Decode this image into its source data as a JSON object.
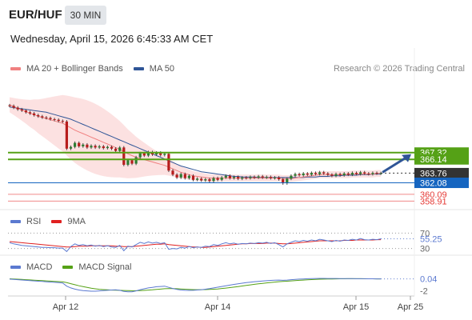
{
  "header": {
    "symbol": "EUR/HUF",
    "interval": "30 MIN",
    "datetime": "Wednesday, April 15, 2026 6:45:33 AM CET",
    "research": "Research © 2026 Trading Central"
  },
  "colors": {
    "ma20": "#f08080",
    "ma50": "#2f5597",
    "bollinger": "#fcdcdc",
    "support_resistance": "#55a116",
    "pivot_blue": "#1565c0",
    "red_lines": "#f08a8a",
    "rsi": "#5b79d0",
    "rsi_ma": "#e02020",
    "macd": "#5b79d0",
    "macd_signal": "#55a116",
    "current_tag": "#333333",
    "arrow": "#2f5597"
  },
  "chart_data": [
    {
      "type": "candlestick",
      "panel": "price",
      "legend": [
        "MA 20 + Bollinger Bands",
        "MA 50"
      ],
      "x_ticks": [
        "Apr 12",
        "Apr 14",
        "Apr 15",
        "Apr 25"
      ],
      "ylim": [
        358.0,
        378.5
      ],
      "levels": [
        {
          "value": 367.32,
          "label": "367.32",
          "style": "resistance"
        },
        {
          "value": 366.14,
          "label": "366.14",
          "style": "resistance"
        },
        {
          "value": 363.76,
          "label": "363.76",
          "style": "current"
        },
        {
          "value": 362.08,
          "label": "362.08",
          "style": "pivot"
        },
        {
          "value": 360.09,
          "label": "360.09",
          "style": "support"
        },
        {
          "value": 358.91,
          "label": "358.91",
          "style": "support"
        }
      ],
      "candles": [
        [
          375.5,
          375.4
        ],
        [
          375.4,
          375.1
        ],
        [
          375.1,
          374.8
        ],
        [
          374.8,
          374.6
        ],
        [
          374.6,
          374.3
        ],
        [
          374.3,
          374.1
        ],
        [
          374.1,
          373.8
        ],
        [
          373.8,
          373.6
        ],
        [
          373.6,
          373.4
        ],
        [
          373.4,
          373.3
        ],
        [
          373.3,
          373.1
        ],
        [
          373.1,
          373.0
        ],
        [
          373.0,
          372.8
        ],
        [
          372.8,
          372.7
        ],
        [
          372.7,
          368.0
        ],
        [
          368.0,
          368.3
        ],
        [
          368.3,
          369.0
        ],
        [
          369.0,
          368.4
        ],
        [
          368.4,
          368.7
        ],
        [
          368.7,
          368.2
        ],
        [
          368.2,
          368.5
        ],
        [
          368.5,
          368.2
        ],
        [
          368.2,
          368.4
        ],
        [
          368.4,
          368.1
        ],
        [
          368.1,
          368.3
        ],
        [
          368.3,
          368.0
        ],
        [
          368.0,
          367.6
        ],
        [
          367.6,
          368.2
        ],
        [
          368.2,
          365.2
        ],
        [
          365.2,
          366.0
        ],
        [
          366.0,
          365.4
        ],
        [
          365.4,
          366.5
        ],
        [
          366.5,
          367.2
        ],
        [
          367.2,
          366.8
        ],
        [
          366.8,
          367.4
        ],
        [
          367.4,
          367.0
        ],
        [
          367.0,
          367.3
        ],
        [
          367.3,
          366.9
        ],
        [
          366.9,
          367.1
        ],
        [
          367.1,
          364.2
        ],
        [
          364.2,
          363.5
        ],
        [
          363.5,
          363.0
        ],
        [
          363.0,
          363.6
        ],
        [
          363.6,
          362.9
        ],
        [
          362.9,
          363.3
        ],
        [
          363.3,
          362.6
        ],
        [
          362.6,
          362.8
        ],
        [
          362.8,
          362.5
        ],
        [
          362.5,
          362.7
        ],
        [
          362.7,
          362.4
        ],
        [
          362.4,
          362.9
        ],
        [
          362.9,
          362.6
        ],
        [
          362.6,
          363.0
        ],
        [
          363.0,
          363.3
        ],
        [
          363.3,
          362.9
        ],
        [
          362.9,
          363.1
        ],
        [
          363.1,
          362.8
        ],
        [
          362.8,
          363.0
        ],
        [
          363.0,
          362.9
        ],
        [
          362.9,
          363.1
        ],
        [
          363.1,
          363.0
        ],
        [
          363.0,
          363.2
        ],
        [
          363.2,
          363.0
        ],
        [
          363.0,
          363.1
        ],
        [
          363.1,
          362.9
        ],
        [
          362.9,
          363.0
        ],
        [
          363.0,
          362.7
        ],
        [
          362.7,
          362.0
        ],
        [
          362.0,
          362.8
        ],
        [
          362.8,
          363.3
        ],
        [
          363.3,
          363.6
        ],
        [
          363.6,
          363.4
        ],
        [
          363.4,
          363.7
        ],
        [
          363.7,
          363.5
        ],
        [
          363.5,
          363.8
        ],
        [
          363.8,
          363.6
        ],
        [
          363.6,
          363.9
        ],
        [
          363.9,
          363.7
        ],
        [
          363.7,
          363.5
        ],
        [
          363.5,
          363.3
        ],
        [
          363.3,
          363.6
        ],
        [
          363.6,
          363.4
        ],
        [
          363.4,
          363.7
        ],
        [
          363.7,
          363.5
        ],
        [
          363.5,
          363.8
        ],
        [
          363.8,
          363.6
        ],
        [
          363.6,
          363.9
        ],
        [
          363.9,
          363.7
        ],
        [
          363.7,
          363.6
        ],
        [
          363.6,
          363.8
        ],
        [
          363.8,
          363.7
        ],
        [
          363.7,
          363.76
        ]
      ],
      "ma20": [
        375.6,
        375.3,
        375.0,
        374.7,
        374.4,
        374.1,
        373.9,
        373.6,
        373.4,
        373.2,
        373.0,
        372.8,
        372.6,
        372.4,
        372.0,
        371.6,
        371.2,
        370.9,
        370.6,
        370.3,
        370.0,
        369.7,
        369.4,
        369.1,
        368.8,
        368.5,
        368.2,
        367.9,
        367.5,
        367.1,
        366.8,
        366.5,
        366.3,
        366.1,
        365.9,
        365.7,
        365.5,
        365.3,
        365.1,
        364.8,
        364.5,
        364.2,
        363.9,
        363.7,
        363.5,
        363.3,
        363.2,
        363.1,
        363.0,
        362.9,
        362.9,
        362.9,
        362.9,
        362.9,
        362.9,
        362.9,
        362.9,
        362.9,
        362.9,
        362.9,
        362.9,
        362.9,
        362.9,
        362.9,
        362.9,
        362.9,
        362.9,
        362.8,
        362.8,
        362.8,
        362.9,
        363.0,
        363.1,
        363.2,
        363.3,
        363.4,
        363.5,
        363.5,
        363.5,
        363.5,
        363.5,
        363.5,
        363.5,
        363.5,
        363.6,
        363.6,
        363.6,
        363.6,
        363.6,
        363.6,
        363.7,
        363.7
      ],
      "ma50": [
        375.2,
        375.1,
        375.0,
        374.9,
        374.8,
        374.7,
        374.6,
        374.5,
        374.4,
        374.3,
        374.1,
        373.9,
        373.7,
        373.5,
        373.3,
        373.1,
        372.8,
        372.5,
        372.2,
        371.9,
        371.6,
        371.3,
        371.0,
        370.7,
        370.4,
        370.1,
        369.8,
        369.5,
        369.2,
        368.9,
        368.6,
        368.3,
        368.0,
        367.7,
        367.4,
        367.1,
        366.8,
        366.5,
        366.2,
        365.9,
        365.6,
        365.3,
        365.0,
        364.8,
        364.6,
        364.4,
        364.2,
        364.0,
        363.9,
        363.8,
        363.7,
        363.6,
        363.5,
        363.4,
        363.3,
        363.2,
        363.2,
        363.1,
        363.1,
        363.1,
        363.1,
        363.0,
        363.0,
        363.0,
        363.0,
        363.0,
        363.0,
        363.0,
        363.0,
        363.0,
        363.0,
        363.0,
        363.0,
        363.1,
        363.1,
        363.1,
        363.2,
        363.2,
        363.2,
        363.3,
        363.3,
        363.3,
        363.4,
        363.4,
        363.4,
        363.4,
        363.5,
        363.5,
        363.5,
        363.6,
        363.6,
        363.6
      ]
    },
    {
      "type": "line",
      "panel": "rsi",
      "legend": [
        "RSI",
        "9MA"
      ],
      "ylim": [
        25,
        75
      ],
      "ticks": [
        "70",
        "30"
      ],
      "current_label": "55.25",
      "series": [
        {
          "name": "RSI",
          "values": [
            45,
            42,
            40,
            38,
            37,
            36,
            35,
            34,
            33,
            33,
            32,
            32,
            31,
            31,
            22,
            35,
            42,
            38,
            40,
            37,
            39,
            36,
            38,
            35,
            37,
            34,
            33,
            38,
            24,
            36,
            34,
            40,
            46,
            43,
            47,
            44,
            46,
            43,
            45,
            28,
            30,
            29,
            33,
            31,
            35,
            32,
            34,
            33,
            36,
            35,
            40,
            38,
            42,
            45,
            42,
            44,
            41,
            43,
            42,
            44,
            43,
            45,
            44,
            46,
            43,
            45,
            40,
            34,
            42,
            46,
            50,
            48,
            51,
            49,
            52,
            50,
            54,
            52,
            50,
            48,
            51,
            49,
            52,
            51,
            54,
            52,
            56,
            53,
            52,
            54,
            53,
            55.25
          ]
        },
        {
          "name": "9MA",
          "values": [
            48,
            47,
            46,
            45,
            44,
            43,
            42,
            41,
            40,
            39,
            38,
            37,
            36,
            35,
            34,
            34,
            35,
            36,
            36,
            36,
            37,
            37,
            37,
            37,
            37,
            37,
            36,
            36,
            35,
            35,
            35,
            36,
            37,
            38,
            39,
            40,
            41,
            41,
            42,
            40,
            39,
            38,
            37,
            36,
            35,
            34,
            34,
            33,
            33,
            34,
            35,
            36,
            37,
            38,
            39,
            40,
            41,
            42,
            42,
            43,
            43,
            43,
            43,
            44,
            44,
            44,
            43,
            42,
            42,
            43,
            44,
            45,
            46,
            47,
            48,
            49,
            50,
            50,
            50,
            50,
            50,
            50,
            51,
            51,
            51,
            52,
            52,
            52,
            52,
            52,
            53,
            53
          ]
        }
      ]
    },
    {
      "type": "line",
      "panel": "macd",
      "legend": [
        "MACD",
        "MACD Signal"
      ],
      "ylim": [
        -2.6,
        0.8
      ],
      "ticks": [
        "-2"
      ],
      "current_label": "0.04",
      "series": [
        {
          "name": "MACD",
          "values": [
            0.0,
            -0.05,
            -0.1,
            -0.15,
            -0.2,
            -0.25,
            -0.3,
            -0.35,
            -0.4,
            -0.45,
            -0.5,
            -0.55,
            -0.6,
            -0.65,
            -1.2,
            -1.5,
            -1.7,
            -1.85,
            -1.95,
            -2.0,
            -2.05,
            -2.05,
            -2.0,
            -1.95,
            -1.9,
            -1.85,
            -1.82,
            -1.9,
            -2.1,
            -2.15,
            -2.15,
            -2.0,
            -1.8,
            -1.65,
            -1.5,
            -1.4,
            -1.3,
            -1.25,
            -1.2,
            -1.4,
            -1.6,
            -1.75,
            -1.85,
            -1.9,
            -1.92,
            -1.9,
            -1.85,
            -1.8,
            -1.72,
            -1.62,
            -1.5,
            -1.38,
            -1.26,
            -1.15,
            -1.02,
            -0.9,
            -0.8,
            -0.7,
            -0.6,
            -0.52,
            -0.44,
            -0.38,
            -0.32,
            -0.27,
            -0.22,
            -0.18,
            -0.16,
            -0.2,
            -0.16,
            -0.1,
            -0.05,
            0.0,
            0.03,
            0.06,
            0.08,
            0.1,
            0.12,
            0.12,
            0.11,
            0.1,
            0.1,
            0.09,
            0.09,
            0.08,
            0.08,
            0.07,
            0.07,
            0.06,
            0.05,
            0.05,
            0.04,
            0.04
          ]
        },
        {
          "name": "MACD Signal",
          "values": [
            0.05,
            0.02,
            -0.02,
            -0.06,
            -0.1,
            -0.14,
            -0.18,
            -0.22,
            -0.26,
            -0.3,
            -0.34,
            -0.38,
            -0.42,
            -0.46,
            -0.6,
            -0.78,
            -0.96,
            -1.13,
            -1.28,
            -1.42,
            -1.55,
            -1.65,
            -1.73,
            -1.79,
            -1.83,
            -1.86,
            -1.88,
            -1.9,
            -1.93,
            -1.96,
            -1.98,
            -1.98,
            -1.96,
            -1.92,
            -1.87,
            -1.82,
            -1.76,
            -1.7,
            -1.64,
            -1.62,
            -1.62,
            -1.64,
            -1.67,
            -1.71,
            -1.75,
            -1.78,
            -1.8,
            -1.8,
            -1.79,
            -1.76,
            -1.72,
            -1.67,
            -1.6,
            -1.53,
            -1.45,
            -1.36,
            -1.27,
            -1.17,
            -1.08,
            -0.98,
            -0.89,
            -0.8,
            -0.72,
            -0.64,
            -0.57,
            -0.5,
            -0.44,
            -0.39,
            -0.35,
            -0.3,
            -0.25,
            -0.2,
            -0.16,
            -0.12,
            -0.08,
            -0.05,
            -0.02,
            0.0,
            0.02,
            0.03,
            0.04,
            0.05,
            0.05,
            0.06,
            0.06,
            0.06,
            0.06,
            0.05,
            0.05,
            0.05,
            0.04,
            0.04
          ]
        }
      ]
    }
  ]
}
